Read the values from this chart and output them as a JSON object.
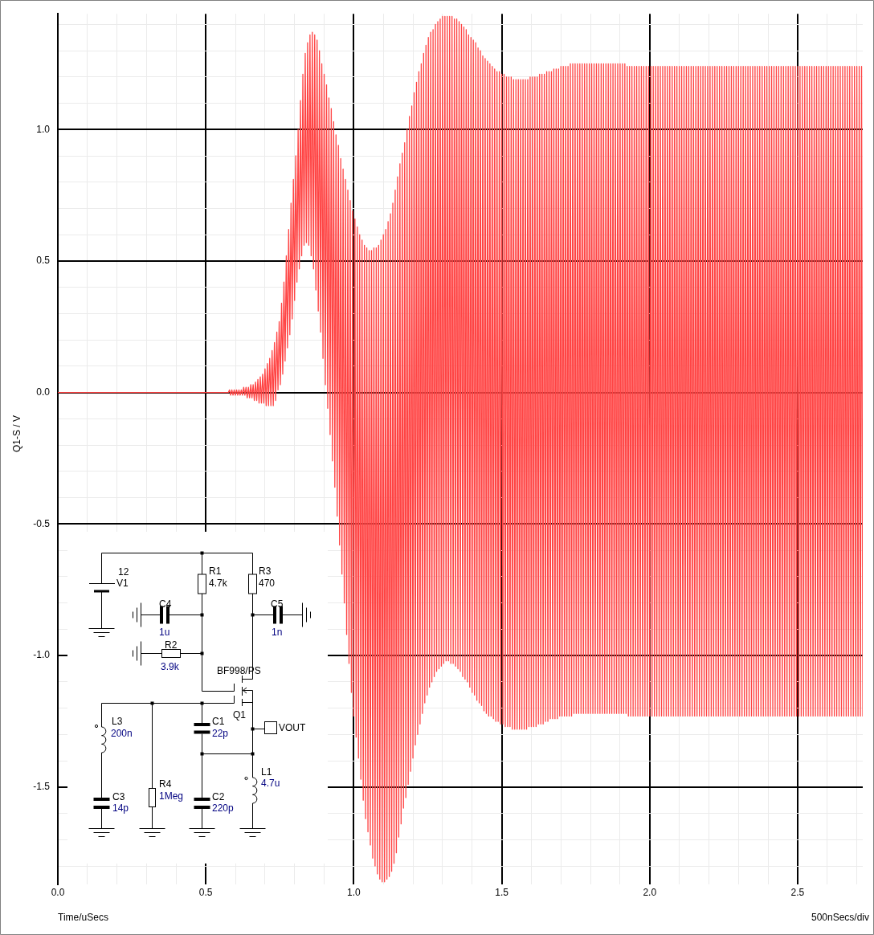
{
  "chart_data": {
    "type": "line",
    "xlabel": "Time/uSecs",
    "ylabel": "Q1-S / V",
    "annotations": [
      "500nSecs/div",
      "12",
      "V1",
      "R1",
      "4.7k",
      "R3",
      "470",
      "C4",
      "1u",
      "C5",
      "1n",
      "R2",
      "3.9k",
      "BF998/PS",
      "Q1",
      "VOUT",
      "L3",
      "200n",
      "C1",
      "22p",
      "L1",
      "4.7u",
      "C3",
      "14p",
      "R4",
      "1Meg",
      "C2",
      "220p"
    ],
    "x": [
      0,
      0.576,
      0.58,
      0.584,
      0.588,
      0.592,
      0.596,
      0.6,
      0.604,
      0.608,
      0.612,
      0.616,
      0.62,
      0.624,
      0.628,
      0.632,
      0.636,
      0.64,
      0.644,
      0.648,
      0.652,
      0.656,
      0.66,
      0.664,
      0.668,
      0.672,
      0.676,
      0.68,
      0.684,
      0.688,
      0.692,
      0.696,
      0.7,
      0.704,
      0.708,
      0.712,
      0.716,
      0.72,
      0.724,
      0.728,
      0.732,
      0.736,
      0.74,
      0.744,
      0.748,
      0.752,
      0.756,
      0.76,
      0.764,
      0.768,
      0.772,
      0.776,
      0.78,
      0.784,
      0.788,
      0.792,
      0.796,
      0.8,
      0.804,
      0.808,
      0.812,
      0.816,
      0.82,
      0.824,
      0.828,
      0.832,
      0.836,
      0.84,
      0.844,
      0.848,
      0.852,
      0.856,
      0.86,
      0.864,
      0.868,
      0.872,
      0.876,
      0.88,
      0.884,
      0.888,
      0.892,
      0.896,
      0.9,
      0.904,
      0.908,
      0.912,
      0.916,
      0.92,
      0.924,
      0.928,
      0.932,
      0.936,
      0.94,
      0.944,
      0.948,
      0.952,
      0.956,
      0.96,
      0.964,
      0.968,
      0.972,
      0.976,
      0.98,
      0.984,
      0.988,
      0.992,
      0.996,
      1,
      1.004,
      1.008,
      1.012,
      1.016,
      1.02,
      1.024,
      1.028,
      1.032,
      1.036,
      1.04,
      1.044,
      1.048,
      1.052,
      1.056,
      1.06,
      1.064,
      1.068,
      1.072,
      1.076,
      1.08,
      1.084,
      1.088,
      1.092,
      1.096,
      1.1,
      1.104,
      1.108,
      1.112,
      1.116,
      1.12,
      1.124,
      1.128,
      1.132,
      1.136,
      1.14,
      1.144,
      1.148,
      1.152,
      1.156,
      1.16,
      1.164,
      1.168,
      1.172,
      1.176,
      1.18,
      1.184,
      1.188,
      1.192,
      1.196,
      1.2,
      1.204,
      1.208,
      1.212,
      1.216,
      1.22,
      1.224,
      1.228,
      1.232,
      1.236,
      1.24,
      1.244,
      1.248,
      1.252,
      1.256,
      1.26,
      1.264,
      1.268,
      1.272,
      1.276,
      1.28,
      1.284,
      1.288,
      1.292,
      1.296,
      1.3,
      1.304,
      1.308,
      1.312,
      1.316,
      1.32,
      1.324,
      1.328,
      1.332,
      1.336,
      1.34,
      1.344,
      1.348,
      1.352,
      1.356,
      1.36,
      1.364,
      1.368,
      1.372,
      1.376,
      1.38,
      1.384,
      1.388,
      1.392,
      1.396,
      1.4,
      1.404,
      1.408,
      1.412,
      1.416,
      1.42,
      1.424,
      1.428,
      1.432,
      1.436,
      1.44,
      1.444,
      1.448,
      1.452,
      1.456,
      1.46,
      1.464,
      1.468,
      1.472,
      1.476,
      1.48,
      1.484,
      1.488,
      1.492,
      1.496,
      1.5,
      1.504,
      1.508,
      1.512,
      1.516,
      1.52,
      1.524,
      1.528,
      1.532,
      1.536,
      1.54,
      1.544,
      1.548,
      1.552,
      1.556,
      1.56,
      1.564,
      1.568,
      1.572,
      1.576,
      1.58,
      1.584,
      1.588,
      1.592,
      1.596,
      1.6,
      1.604,
      1.608,
      1.612,
      1.616,
      1.62,
      1.624,
      1.628,
      1.632,
      1.636,
      1.64,
      1.644,
      1.648,
      1.652,
      1.656,
      1.66,
      1.664,
      1.668,
      1.672,
      1.676,
      1.68,
      1.684,
      1.688,
      1.692,
      1.696,
      1.7,
      1.704,
      1.708,
      1.712,
      1.716,
      1.72,
      1.724,
      1.728,
      1.732,
      1.736,
      1.74,
      1.744,
      1.748,
      1.752,
      1.756,
      1.76,
      1.764,
      1.768,
      1.772,
      1.776,
      1.78,
      1.784,
      1.788,
      1.792,
      1.796,
      1.8,
      1.804,
      1.808,
      1.812,
      1.816,
      1.82,
      1.824,
      1.828,
      1.832,
      1.836,
      1.84,
      1.844,
      1.848,
      1.852,
      1.856,
      1.86,
      1.864,
      1.868,
      1.872,
      1.876,
      1.88,
      1.884,
      1.888,
      1.892,
      1.896,
      1.9,
      1.904,
      1.908,
      1.912,
      1.916,
      1.92,
      1.924,
      1.928,
      1.932,
      1.936,
      1.94,
      1.944,
      1.948,
      1.952,
      1.956,
      1.96,
      1.964,
      1.968,
      1.972,
      1.976,
      1.98,
      1.984,
      1.988,
      1.992,
      1.996,
      2,
      2.004,
      2.008,
      2.012,
      2.016,
      2.02,
      2.024,
      2.028,
      2.032,
      2.036,
      2.04,
      2.044,
      2.048,
      2.052,
      2.056,
      2.06,
      2.064,
      2.068,
      2.072,
      2.076,
      2.08,
      2.084,
      2.088,
      2.092,
      2.096,
      2.1,
      2.104,
      2.108,
      2.112,
      2.116,
      2.12,
      2.124,
      2.128,
      2.132,
      2.136,
      2.14,
      2.144,
      2.148,
      2.152,
      2.156,
      2.16,
      2.164,
      2.168,
      2.172,
      2.176,
      2.18,
      2.184,
      2.188,
      2.192,
      2.196,
      2.2,
      2.204,
      2.208,
      2.212,
      2.216,
      2.22,
      2.224,
      2.228,
      2.232,
      2.236,
      2.24,
      2.244,
      2.248,
      2.252,
      2.256,
      2.26,
      2.264,
      2.268,
      2.272,
      2.276,
      2.28,
      2.284,
      2.288,
      2.292,
      2.296,
      2.3,
      2.304,
      2.308,
      2.312,
      2.316,
      2.32,
      2.324,
      2.328,
      2.332,
      2.336,
      2.34,
      2.344,
      2.348,
      2.352,
      2.356,
      2.36,
      2.364,
      2.368,
      2.372,
      2.376,
      2.38,
      2.384,
      2.388,
      2.392,
      2.396,
      2.4,
      2.404,
      2.408,
      2.412,
      2.416,
      2.42,
      2.424,
      2.428,
      2.432,
      2.436,
      2.44,
      2.444,
      2.448,
      2.452,
      2.456,
      2.46,
      2.464,
      2.468,
      2.472,
      2.476,
      2.48,
      2.484,
      2.488,
      2.492,
      2.496,
      2.5,
      2.504,
      2.508,
      2.512,
      2.516,
      2.52,
      2.524,
      2.528,
      2.532,
      2.536,
      2.54,
      2.544,
      2.548,
      2.552,
      2.556,
      2.56,
      2.564,
      2.568,
      2.572,
      2.576,
      2.58,
      2.584,
      2.588,
      2.592,
      2.596,
      2.6,
      2.604,
      2.608,
      2.612,
      2.616,
      2.62,
      2.624,
      2.628,
      2.632,
      2.636,
      2.64,
      2.644,
      2.648,
      2.652,
      2.656,
      2.66,
      2.664,
      2.668,
      2.672,
      2.676,
      2.68,
      2.684,
      2.688,
      2.692,
      2.696,
      2.7,
      2.704,
      2.708,
      2.712,
      2.716,
      2.72
    ],
    "series": [
      {
        "color": "#ff4444",
        "values": [
          0,
          0,
          0.01,
          -0.01,
          0.01,
          -0.01,
          0.01,
          -0.01,
          0.01,
          -0.01,
          0.01,
          -0.01,
          0.01,
          -0.01,
          0.02,
          -0.01,
          0.02,
          -0.02,
          0.02,
          -0.02,
          0.03,
          -0.02,
          0.03,
          -0.03,
          0.04,
          -0.03,
          0.05,
          -0.04,
          0.06,
          -0.04,
          0.07,
          -0.04,
          0.09,
          -0.05,
          0.11,
          -0.05,
          0.13,
          -0.05,
          0.16,
          -0.05,
          0.19,
          -0.03,
          0.23,
          0.01,
          0.27,
          0.03,
          0.34,
          0.07,
          0.42,
          0.12,
          0.52,
          0.17,
          0.62,
          0.22,
          0.72,
          0.28,
          0.81,
          0.35,
          0.9,
          0.42,
          1,
          0.47,
          1.11,
          0.52,
          1.21,
          0.56,
          1.29,
          0.57,
          1.33,
          0.56,
          1.36,
          0.52,
          1.37,
          0.47,
          1.36,
          0.39,
          1.34,
          0.31,
          1.3,
          0.23,
          1.25,
          0.13,
          1.21,
          0.03,
          1.17,
          -0.06,
          1.12,
          -0.16,
          1.08,
          -0.26,
          1.03,
          -0.36,
          0.98,
          -0.47,
          0.94,
          -0.58,
          0.89,
          -0.69,
          0.85,
          -0.8,
          0.81,
          -0.92,
          0.77,
          -1.03,
          0.73,
          -1.14,
          0.69,
          -1.23,
          0.66,
          -1.31,
          0.63,
          -1.39,
          0.6,
          -1.47,
          0.58,
          -1.55,
          0.56,
          -1.62,
          0.55,
          -1.67,
          0.54,
          -1.72,
          0.54,
          -1.77,
          0.55,
          -1.8,
          0.55,
          -1.83,
          0.56,
          -1.85,
          0.58,
          -1.86,
          0.6,
          -1.86,
          0.62,
          -1.85,
          0.65,
          -1.84,
          0.68,
          -1.82,
          0.72,
          -1.79,
          0.77,
          -1.75,
          0.82,
          -1.69,
          0.87,
          -1.64,
          0.91,
          -1.58,
          0.95,
          -1.54,
          1,
          -1.49,
          1.05,
          -1.44,
          1.09,
          -1.39,
          1.14,
          -1.34,
          1.18,
          -1.3,
          1.22,
          -1.26,
          1.25,
          -1.22,
          1.29,
          -1.18,
          1.32,
          -1.15,
          1.35,
          -1.12,
          1.37,
          -1.1,
          1.38,
          -1.08,
          1.4,
          -1.06,
          1.41,
          -1.05,
          1.42,
          -1.04,
          1.43,
          -1.03,
          1.43,
          -1.02,
          1.43,
          -1.02,
          1.43,
          -1.03,
          1.43,
          -1.03,
          1.42,
          -1.04,
          1.42,
          -1.05,
          1.41,
          -1.06,
          1.4,
          -1.08,
          1.39,
          -1.09,
          1.38,
          -1.1,
          1.36,
          -1.12,
          1.35,
          -1.14,
          1.34,
          -1.15,
          1.33,
          -1.17,
          1.31,
          -1.18,
          1.3,
          -1.19,
          1.28,
          -1.21,
          1.27,
          -1.22,
          1.26,
          -1.23,
          1.25,
          -1.23,
          1.24,
          -1.24,
          1.23,
          -1.25,
          1.22,
          -1.25,
          1.22,
          -1.26,
          1.21,
          -1.26,
          1.21,
          -1.27,
          1.2,
          -1.27,
          1.2,
          -1.27,
          1.2,
          -1.28,
          1.19,
          -1.28,
          1.19,
          -1.28,
          1.19,
          -1.28,
          1.19,
          -1.28,
          1.19,
          -1.28,
          1.19,
          -1.28,
          1.19,
          -1.27,
          1.2,
          -1.27,
          1.2,
          -1.27,
          1.2,
          -1.27,
          1.2,
          -1.26,
          1.21,
          -1.26,
          1.21,
          -1.26,
          1.21,
          -1.25,
          1.22,
          -1.25,
          1.22,
          -1.24,
          1.22,
          -1.24,
          1.23,
          -1.24,
          1.23,
          -1.24,
          1.23,
          -1.23,
          1.24,
          -1.23,
          1.24,
          -1.23,
          1.24,
          -1.23,
          1.24,
          -1.23,
          1.25,
          -1.23,
          1.25,
          -1.22,
          1.25,
          -1.22,
          1.25,
          -1.22,
          1.25,
          -1.22,
          1.25,
          -1.22,
          1.25,
          -1.22,
          1.25,
          -1.22,
          1.25,
          -1.22,
          1.25,
          -1.22,
          1.25,
          -1.22,
          1.25,
          -1.22,
          1.25,
          -1.22,
          1.25,
          -1.22,
          1.25,
          -1.22,
          1.25,
          -1.22,
          1.25,
          -1.22,
          1.25,
          -1.22,
          1.25,
          -1.22,
          1.25,
          -1.22,
          1.25,
          -1.22,
          1.25,
          -1.22,
          1.25,
          -1.22,
          1.25,
          -1.22,
          1.24,
          -1.23,
          1.24,
          -1.23,
          1.24,
          -1.23,
          1.24,
          -1.23,
          1.24,
          -1.23,
          1.24,
          -1.23,
          1.24,
          -1.23,
          1.24,
          -1.23,
          1.24,
          -1.23,
          1.24,
          -1.23,
          1.24,
          -1.23,
          1.24,
          -1.23,
          1.24,
          -1.23,
          1.24,
          -1.23,
          1.24,
          -1.23,
          1.24,
          -1.23,
          1.24,
          -1.23,
          1.24,
          -1.23,
          1.24,
          -1.23,
          1.24,
          -1.23,
          1.24,
          -1.23,
          1.24,
          -1.23,
          1.24,
          -1.23,
          1.24,
          -1.23,
          1.24,
          -1.23,
          1.24,
          -1.23,
          1.24,
          -1.23,
          1.24,
          -1.23,
          1.24,
          -1.23,
          1.24,
          -1.23,
          1.24,
          -1.23,
          1.24,
          -1.23,
          1.24,
          -1.23,
          1.24,
          -1.23,
          1.24,
          -1.23,
          1.24,
          -1.23,
          1.24,
          -1.23,
          1.24,
          -1.23,
          1.24,
          -1.23,
          1.24,
          -1.23,
          1.24,
          -1.23,
          1.24,
          -1.23,
          1.24,
          -1.23,
          1.24,
          -1.23,
          1.24,
          -1.23,
          1.24,
          -1.23,
          1.24,
          -1.23,
          1.24,
          -1.23,
          1.24,
          -1.23,
          1.24,
          -1.23,
          1.24,
          -1.23,
          1.24,
          -1.23,
          1.24,
          -1.23,
          1.24,
          -1.23,
          1.24,
          -1.23,
          1.24,
          -1.23,
          1.24,
          -1.23,
          1.24,
          -1.23,
          1.24,
          -1.23,
          1.24,
          -1.23,
          1.24,
          -1.23,
          1.24,
          -1.23,
          1.24,
          -1.23,
          1.24,
          -1.23,
          1.24,
          -1.23,
          1.24,
          -1.23,
          1.24,
          -1.23,
          1.24,
          -1.23,
          1.24,
          -1.23,
          1.24,
          -1.23,
          1.24,
          -1.23,
          1.24,
          -1.23,
          1.24,
          -1.23,
          1.24,
          -1.23,
          1.24,
          -1.23,
          1.24,
          -1.23,
          1.24,
          -1.23,
          1.24,
          -1.23,
          1.24,
          -1.23,
          1.24,
          -1.23,
          1.24,
          -1.23,
          1.24,
          -1.23,
          1.24,
          -1.23,
          1.24,
          -1.23,
          1.24,
          -1.23,
          1.24,
          -1.23,
          1.24,
          -1.23,
          1.24,
          -1.23,
          1.24,
          -1.23,
          1.24,
          -1.23,
          1.24,
          -1.23,
          1.24,
          -1.23,
          1.24,
          -1.23,
          1.24,
          -1.23,
          1.24,
          -1.23,
          1.24,
          -1.23,
          1.24,
          -1.23,
          1.24,
          -1.23,
          1.24,
          -1.23,
          1.24,
          -1.23
        ]
      }
    ],
    "xlim": [
      0,
      2.72
    ],
    "ylim": [
      -1.87,
      1.44
    ],
    "xticks": [
      {
        "value": 0,
        "label": "0.0"
      },
      {
        "value": 0.1,
        "label": null
      },
      {
        "value": 0.2,
        "label": null
      },
      {
        "value": 0.3,
        "label": null
      },
      {
        "value": 0.4,
        "label": null
      },
      0.5,
      {
        "value": 0.6,
        "label": null
      },
      {
        "value": 0.7,
        "label": null
      },
      {
        "value": 0.8,
        "label": null
      },
      {
        "value": 0.9,
        "label": null
      },
      {
        "value": 1,
        "label": "1.0"
      },
      {
        "value": 1.1,
        "label": null
      },
      {
        "value": 1.2,
        "label": null
      },
      {
        "value": 1.3,
        "label": null
      },
      {
        "value": 1.4,
        "label": null
      },
      1.5,
      {
        "value": 1.6,
        "label": null
      },
      {
        "value": 1.7,
        "label": null
      },
      {
        "value": 1.8,
        "label": null
      },
      {
        "value": 1.9,
        "label": null
      },
      {
        "value": 2,
        "label": "2.0"
      },
      {
        "value": 2.1,
        "label": null
      },
      {
        "value": 2.2,
        "label": null
      },
      {
        "value": 2.3,
        "label": null
      },
      {
        "value": 2.4,
        "label": null
      },
      2.5,
      {
        "value": 2.6,
        "label": null
      },
      {
        "value": 2.7,
        "label": null
      }
    ],
    "yticks": [
      {
        "value": -1.8,
        "label": null
      },
      {
        "value": -1.7,
        "label": null
      },
      {
        "value": -1.6,
        "label": null
      },
      -1.5,
      {
        "value": -1.4,
        "label": null
      },
      {
        "value": -1.3,
        "label": null
      },
      {
        "value": -1.2,
        "label": null
      },
      {
        "value": -1.1,
        "label": null
      },
      {
        "value": -1,
        "label": "-1.0"
      },
      {
        "value": -0.9,
        "label": null
      },
      {
        "value": -0.8,
        "label": null
      },
      {
        "value": -0.7,
        "label": null
      },
      {
        "value": -0.6,
        "label": null
      },
      -0.5,
      {
        "value": -0.4,
        "label": null
      },
      {
        "value": -0.3,
        "label": null
      },
      {
        "value": -0.2,
        "label": null
      },
      {
        "value": -0.1,
        "label": null
      },
      {
        "value": 0,
        "label": "0.0"
      },
      {
        "value": 0.1,
        "label": null
      },
      {
        "value": 0.2,
        "label": null
      },
      {
        "value": 0.3,
        "label": null
      },
      {
        "value": 0.4,
        "label": null
      },
      0.5,
      {
        "value": 0.6,
        "label": null
      },
      {
        "value": 0.7,
        "label": null
      },
      {
        "value": 0.8,
        "label": null
      },
      {
        "value": 0.9,
        "label": null
      },
      {
        "value": 1,
        "label": "1.0"
      },
      {
        "value": 1.1,
        "label": null
      },
      {
        "value": 1.2,
        "label": null
      },
      {
        "value": 1.3,
        "label": null
      },
      {
        "value": 1.4,
        "label": null
      }
    ],
    "grid": true
  }
}
